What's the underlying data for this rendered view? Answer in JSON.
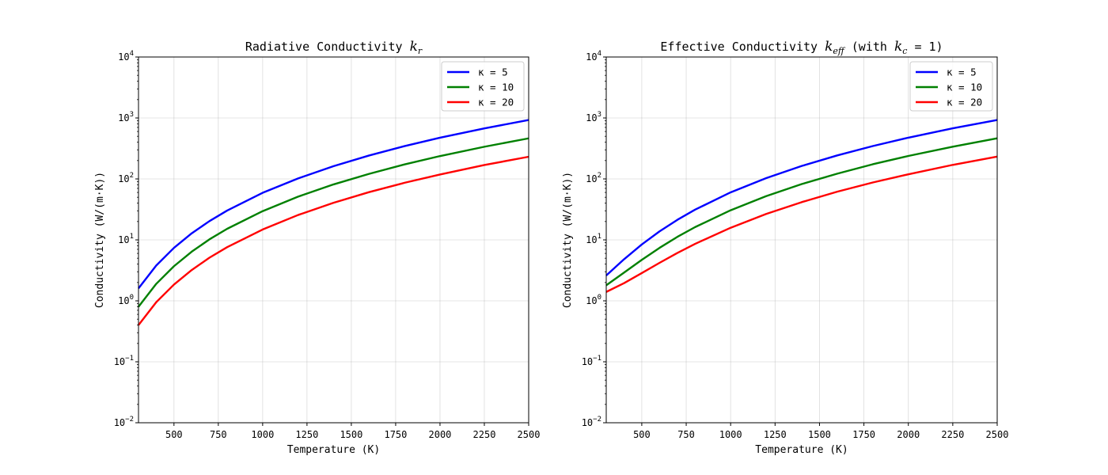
{
  "chart_data": [
    {
      "type": "line",
      "title": "Radiative Conductivity ",
      "title_math": "k",
      "title_math_sub": "r",
      "title_suffix": "",
      "xlabel": "Temperature (K)",
      "ylabel": "Conductivity (W/(m·K))",
      "xlim": [
        300,
        2500
      ],
      "ylim": [
        0.01,
        10000
      ],
      "yscale": "log",
      "grid": true,
      "legend": "top-right",
      "x_ticks": [
        "500",
        "750",
        "1000",
        "1250",
        "1500",
        "1750",
        "2000",
        "2250",
        "2500"
      ],
      "y_ticks": [
        "10−2",
        "10−1",
        "10^0",
        "10^1",
        "10^2",
        "10^3",
        "10^4"
      ],
      "x": [
        300,
        400,
        500,
        600,
        700,
        800,
        1000,
        1200,
        1400,
        1600,
        1800,
        2000,
        2250,
        2500
      ],
      "series": [
        {
          "name": "κ = 5",
          "color": "#0000ff",
          "values": [
            1.6,
            3.8,
            7.4,
            12.8,
            20.3,
            30.3,
            59.2,
            102,
            162,
            242,
            345,
            474,
            675,
            925
          ]
        },
        {
          "name": "κ = 10",
          "color": "#008000",
          "values": [
            0.8,
            1.9,
            3.7,
            6.4,
            10.2,
            15.2,
            29.6,
            51.2,
            81.3,
            121,
            173,
            237,
            337,
            463
          ]
        },
        {
          "name": "κ = 20",
          "color": "#ff0000",
          "values": [
            0.4,
            0.95,
            1.85,
            3.2,
            5.1,
            7.6,
            14.8,
            25.6,
            40.6,
            60.7,
            86.4,
            118,
            169,
            231
          ]
        }
      ]
    },
    {
      "type": "line",
      "title": "Effective Conductivity ",
      "title_math": "k",
      "title_math_sub": "eff",
      "title_suffix": " (with ",
      "title_math2": "k",
      "title_math2_sub": "c",
      "title_end": " = 1)",
      "xlabel": "Temperature (K)",
      "ylabel": "Conductivity (W/(m·K))",
      "xlim": [
        300,
        2500
      ],
      "ylim": [
        0.01,
        10000
      ],
      "yscale": "log",
      "grid": true,
      "legend": "top-right",
      "x_ticks": [
        "500",
        "750",
        "1000",
        "1250",
        "1500",
        "1750",
        "2000",
        "2250",
        "2500"
      ],
      "y_ticks": [
        "10−2",
        "10−1",
        "10^0",
        "10^1",
        "10^2",
        "10^3",
        "10^4"
      ],
      "x": [
        300,
        400,
        500,
        600,
        700,
        800,
        1000,
        1200,
        1400,
        1600,
        1800,
        2000,
        2250,
        2500
      ],
      "series": [
        {
          "name": "κ = 5",
          "color": "#0000ff",
          "values": [
            2.6,
            4.8,
            8.4,
            13.8,
            21.3,
            31.3,
            60.2,
            103,
            163,
            243,
            346,
            475,
            676,
            926
          ]
        },
        {
          "name": "κ = 10",
          "color": "#008000",
          "values": [
            1.8,
            2.9,
            4.7,
            7.4,
            11.2,
            16.2,
            30.6,
            52.2,
            82.3,
            122,
            174,
            238,
            338,
            464
          ]
        },
        {
          "name": "κ = 20",
          "color": "#ff0000",
          "values": [
            1.4,
            1.95,
            2.85,
            4.2,
            6.1,
            8.6,
            15.8,
            26.6,
            41.6,
            61.7,
            87.4,
            119,
            170,
            232
          ]
        }
      ]
    }
  ]
}
